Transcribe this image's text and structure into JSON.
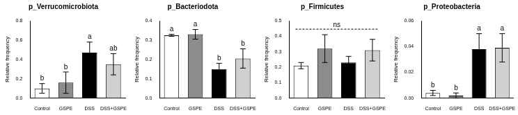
{
  "chart_data": [
    {
      "type": "bar",
      "title": "p_Verrucomicrobiota",
      "y_label": "Relative frequency",
      "categories": [
        "Control",
        "GSPE",
        "DSS",
        "DSS+GSPE"
      ],
      "values": [
        0.1,
        0.16,
        0.47,
        0.35
      ],
      "errors": [
        0.05,
        0.11,
        0.11,
        0.11
      ],
      "letters": [
        "b",
        "b",
        "a",
        "ab"
      ],
      "colors": [
        "#ffffff",
        "#8c8c8c",
        "#000000",
        "#d0d0d0"
      ],
      "ylim": [
        0,
        0.8
      ],
      "yticks": [
        {
          "value": 0,
          "label": "0.0"
        },
        0.2,
        0.4,
        0.6,
        0.8
      ],
      "grid": false
    },
    {
      "type": "bar",
      "title": "p_Bacteriodota",
      "y_label": "Relative frequency",
      "categories": [
        "Control",
        "GSPE",
        "DSS",
        "DSS+GSPE"
      ],
      "values": [
        0.325,
        0.33,
        0.15,
        0.205
      ],
      "errors": [
        0.005,
        0.025,
        0.03,
        0.05
      ],
      "letters": [
        "a",
        "a",
        "b",
        "b"
      ],
      "colors": [
        "#ffffff",
        "#8c8c8c",
        "#000000",
        "#d0d0d0"
      ],
      "ylim": [
        0,
        0.4
      ],
      "yticks": [
        {
          "value": 0,
          "label": "0.0"
        },
        0.1,
        0.2,
        0.3,
        0.4
      ],
      "grid": false
    },
    {
      "type": "bar",
      "title": "p_Firmicutes",
      "y_label": "Relative frequency",
      "categories": [
        "Control",
        "GSPE",
        "DSS",
        "DSS+GSPE"
      ],
      "values": [
        0.21,
        0.32,
        0.23,
        0.31
      ],
      "errors": [
        0.02,
        0.09,
        0.04,
        0.07
      ],
      "note": "ns",
      "colors": [
        "#ffffff",
        "#8c8c8c",
        "#000000",
        "#d0d0d0"
      ],
      "ylim": [
        0,
        0.5
      ],
      "yticks": [
        {
          "value": 0,
          "label": "0.0"
        },
        0.1,
        0.2,
        0.3,
        0.4,
        0.5
      ],
      "grid": false
    },
    {
      "type": "bar",
      "title": "p_Proteobacteria",
      "y_label": "Relative frequency",
      "categories": [
        "Control",
        "GSPE",
        "DSS",
        "DSS+GSPE"
      ],
      "values": [
        0.004,
        0.002,
        0.038,
        0.039
      ],
      "errors": [
        0.002,
        0.002,
        0.012,
        0.011
      ],
      "letters": [
        "b",
        "b",
        "a",
        "a"
      ],
      "colors": [
        "#ffffff",
        "#8c8c8c",
        "#000000",
        "#d0d0d0"
      ],
      "ylim": [
        0,
        0.06
      ],
      "yticks": [
        {
          "value": 0,
          "label": "0.00"
        },
        {
          "value": 0.02,
          "label": "0.02"
        },
        {
          "value": 0.04,
          "label": "0.04"
        },
        {
          "value": 0.06,
          "label": "0.06"
        }
      ],
      "grid": false
    }
  ]
}
